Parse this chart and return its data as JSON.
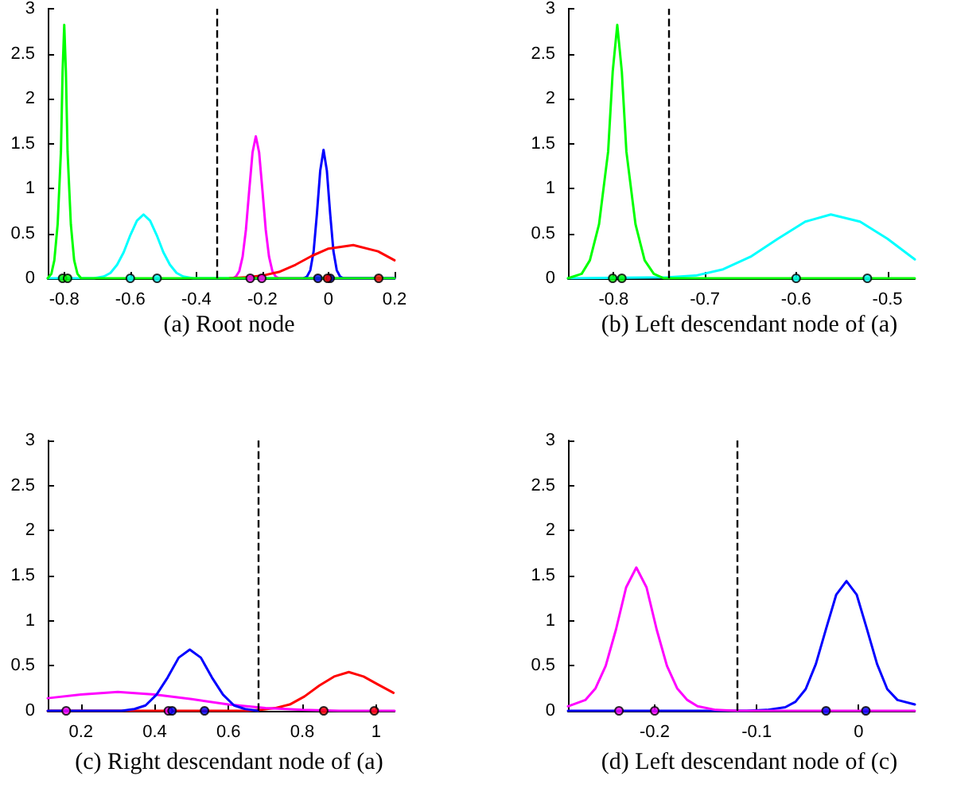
{
  "chart_data": [
    {
      "type": "line",
      "title": "(a) Root node",
      "xlim": [
        -0.85,
        0.2
      ],
      "ylim": [
        0,
        3
      ],
      "xticks": [
        -0.8,
        -0.6,
        -0.4,
        -0.2,
        0,
        0.2
      ],
      "yticks": [
        0,
        0.5,
        1,
        1.5,
        2,
        2.5,
        3
      ],
      "ref_lines": [
        {
          "axis": "x",
          "value": -0.345,
          "color": "#000000",
          "line_style": "dashed"
        }
      ],
      "series": [
        {
          "color": "#00ffff",
          "x": [
            -0.85,
            -0.71,
            -0.68,
            -0.66,
            -0.64,
            -0.62,
            -0.6,
            -0.58,
            -0.56,
            -0.54,
            -0.52,
            -0.5,
            -0.48,
            -0.46,
            -0.44,
            -0.41,
            0.2
          ],
          "values": [
            0,
            0,
            0.02,
            0.06,
            0.15,
            0.29,
            0.48,
            0.64,
            0.71,
            0.64,
            0.48,
            0.29,
            0.15,
            0.06,
            0.02,
            0,
            0
          ]
        },
        {
          "color": "#ff00ff",
          "x": [
            -0.29,
            -0.28,
            -0.27,
            -0.26,
            -0.25,
            -0.24,
            -0.23,
            -0.22,
            -0.21,
            -0.2,
            -0.19,
            -0.18,
            -0.17,
            -0.16,
            -0.15,
            0.2
          ],
          "values": [
            0,
            0.02,
            0.08,
            0.24,
            0.54,
            0.98,
            1.4,
            1.58,
            1.4,
            0.98,
            0.54,
            0.24,
            0.08,
            0.02,
            0,
            0
          ]
        },
        {
          "color": "#0000ff",
          "x": [
            -0.075,
            -0.065,
            -0.055,
            -0.045,
            -0.035,
            -0.025,
            -0.015,
            -0.005,
            0.005,
            0.015,
            0.025,
            0.035,
            0.045,
            0.2
          ],
          "values": [
            0,
            0.02,
            0.09,
            0.3,
            0.72,
            1.2,
            1.43,
            1.2,
            0.72,
            0.3,
            0.09,
            0.02,
            0,
            0
          ]
        },
        {
          "color": "#ff0000",
          "x": [
            -0.3,
            -0.25,
            -0.2,
            -0.15,
            -0.1,
            -0.05,
            0,
            0.075,
            0.15,
            0.2
          ],
          "values": [
            0,
            0.01,
            0.03,
            0.07,
            0.15,
            0.25,
            0.33,
            0.37,
            0.3,
            0.2
          ]
        },
        {
          "color": "#00ff00",
          "x": [
            -0.85,
            -0.839,
            -0.83,
            -0.82,
            -0.81,
            -0.805,
            -0.8,
            -0.795,
            -0.79,
            -0.78,
            -0.77,
            -0.76,
            -0.749,
            0.2
          ],
          "values": [
            0,
            0.05,
            0.2,
            0.6,
            1.41,
            2.3,
            2.82,
            2.3,
            1.41,
            0.6,
            0.2,
            0.05,
            0,
            0
          ]
        },
        {
          "type": "scatter",
          "marker": "circle",
          "color": "#00ff00",
          "x": [
            -0.805,
            -0.79
          ],
          "values": [
            0,
            0
          ]
        },
        {
          "type": "scatter",
          "marker": "circle",
          "color": "#00ffff",
          "x": [
            -0.6,
            -0.519
          ],
          "values": [
            0,
            0
          ]
        },
        {
          "type": "scatter",
          "marker": "circle",
          "color": "#ff00ff",
          "x": [
            -0.237,
            -0.202
          ],
          "values": [
            0,
            0
          ]
        },
        {
          "type": "scatter",
          "marker": "circle",
          "color": "#0000ff",
          "x": [
            -0.032,
            0.005
          ],
          "values": [
            0,
            0
          ]
        },
        {
          "type": "scatter",
          "marker": "circle",
          "color": "#ff0000",
          "x": [
            -0.003,
            0.152
          ],
          "values": [
            0,
            0
          ]
        }
      ]
    },
    {
      "type": "line",
      "title": "(b) Left descendant node of (a)",
      "xlim": [
        -0.85,
        -0.47
      ],
      "ylim": [
        0,
        3
      ],
      "xticks": [
        -0.8,
        -0.7,
        -0.6,
        -0.5
      ],
      "yticks": [
        0,
        0.5,
        1,
        1.5,
        2,
        2.5,
        3
      ],
      "ref_lines": [
        {
          "axis": "x",
          "value": -0.74,
          "color": "#000000",
          "line_style": "dashed"
        }
      ],
      "series": [
        {
          "color": "#00ffff",
          "x": [
            -0.85,
            -0.74,
            -0.71,
            -0.68,
            -0.65,
            -0.62,
            -0.59,
            -0.562,
            -0.53,
            -0.5,
            -0.47
          ],
          "values": [
            0,
            0.01,
            0.03,
            0.1,
            0.24,
            0.44,
            0.63,
            0.71,
            0.63,
            0.44,
            0.21
          ]
        },
        {
          "color": "#00ff00",
          "x": [
            -0.85,
            -0.835,
            -0.826,
            -0.816,
            -0.806,
            -0.801,
            -0.796,
            -0.791,
            -0.786,
            -0.776,
            -0.766,
            -0.756,
            -0.745,
            -0.47
          ],
          "values": [
            0,
            0.05,
            0.2,
            0.6,
            1.41,
            2.3,
            2.82,
            2.3,
            1.41,
            0.6,
            0.2,
            0.05,
            0,
            0
          ]
        },
        {
          "type": "scatter",
          "marker": "circle",
          "color": "#00ff00",
          "x": [
            -0.801,
            -0.791
          ],
          "values": [
            0,
            0
          ]
        },
        {
          "type": "scatter",
          "marker": "circle",
          "color": "#00ffff",
          "x": [
            -0.6,
            -0.522
          ],
          "values": [
            0,
            0
          ]
        }
      ]
    },
    {
      "type": "line",
      "title": "(c) Right descendant node of (a)",
      "xlim": [
        0.11,
        1.05
      ],
      "ylim": [
        0,
        3
      ],
      "xticks": [
        0.2,
        0.4,
        0.6,
        0.8,
        1
      ],
      "yticks": [
        0,
        0.5,
        1,
        1.5,
        2,
        2.5,
        3
      ],
      "ref_lines": [
        {
          "axis": "x",
          "value": 0.681,
          "color": "#000000",
          "line_style": "dashed"
        }
      ],
      "series": [
        {
          "color": "#ff0000",
          "x": [
            0.11,
            0.65,
            0.686,
            0.726,
            0.766,
            0.806,
            0.846,
            0.886,
            0.926,
            0.966,
            1.006,
            1.047
          ],
          "values": [
            0,
            0,
            0.01,
            0.03,
            0.07,
            0.16,
            0.28,
            0.38,
            0.43,
            0.38,
            0.29,
            0.2
          ]
        },
        {
          "color": "#ff00ff",
          "x": [
            0.11,
            0.2,
            0.3,
            0.4,
            0.5,
            0.6,
            0.7,
            0.8,
            0.9,
            1.05
          ],
          "values": [
            0.14,
            0.18,
            0.21,
            0.18,
            0.13,
            0.07,
            0.03,
            0.01,
            0,
            0
          ]
        },
        {
          "color": "#0000ff",
          "x": [
            0.11,
            0.31,
            0.345,
            0.375,
            0.405,
            0.435,
            0.465,
            0.495,
            0.525,
            0.555,
            0.585,
            0.615,
            0.645,
            0.68
          ],
          "values": [
            0,
            0,
            0.02,
            0.06,
            0.18,
            0.37,
            0.59,
            0.68,
            0.59,
            0.37,
            0.18,
            0.06,
            0.02,
            0
          ]
        },
        {
          "type": "scatter",
          "marker": "circle",
          "color": "#ff00ff",
          "x": [
            0.16,
            0.437
          ],
          "values": [
            0,
            0
          ]
        },
        {
          "type": "scatter",
          "marker": "circle",
          "color": "#0000ff",
          "x": [
            0.447,
            0.535
          ],
          "values": [
            0,
            0
          ]
        },
        {
          "type": "scatter",
          "marker": "circle",
          "color": "#ff0000",
          "x": [
            0.858,
            0.995
          ],
          "values": [
            0,
            0
          ]
        }
      ]
    },
    {
      "type": "line",
      "title": "(d) Left descendant node of (c)",
      "xlim": [
        -0.285,
        0.055
      ],
      "ylim": [
        0,
        3
      ],
      "xticks": [
        -0.2,
        -0.1,
        0
      ],
      "yticks": [
        0,
        0.5,
        1,
        1.5,
        2,
        2.5,
        3
      ],
      "ref_lines": [
        {
          "axis": "x",
          "value": -0.119,
          "color": "#000000",
          "line_style": "dashed"
        }
      ],
      "series": [
        {
          "color": "#0000ff",
          "x": [
            -0.285,
            -0.11,
            -0.09,
            -0.072,
            -0.062,
            -0.052,
            -0.042,
            -0.032,
            -0.022,
            -0.012,
            -0.002,
            0.008,
            0.018,
            0.028,
            0.038,
            0.055
          ],
          "values": [
            0,
            0,
            0.01,
            0.04,
            0.1,
            0.24,
            0.52,
            0.91,
            1.29,
            1.44,
            1.29,
            0.91,
            0.52,
            0.24,
            0.12,
            0.07
          ]
        },
        {
          "color": "#ff00ff",
          "x": [
            -0.285,
            -0.268,
            -0.258,
            -0.248,
            -0.238,
            -0.228,
            -0.218,
            -0.208,
            -0.198,
            -0.188,
            -0.178,
            -0.168,
            -0.158,
            -0.14,
            -0.12,
            0.055
          ],
          "values": [
            0.05,
            0.12,
            0.25,
            0.5,
            0.9,
            1.37,
            1.59,
            1.37,
            0.9,
            0.5,
            0.25,
            0.12,
            0.05,
            0.01,
            0,
            0
          ]
        },
        {
          "type": "scatter",
          "marker": "circle",
          "color": "#ff00ff",
          "x": [
            -0.235,
            -0.2
          ],
          "values": [
            0,
            0
          ]
        },
        {
          "type": "scatter",
          "marker": "circle",
          "color": "#0000ff",
          "x": [
            -0.032,
            0.007
          ],
          "values": [
            0,
            0
          ]
        }
      ]
    }
  ]
}
